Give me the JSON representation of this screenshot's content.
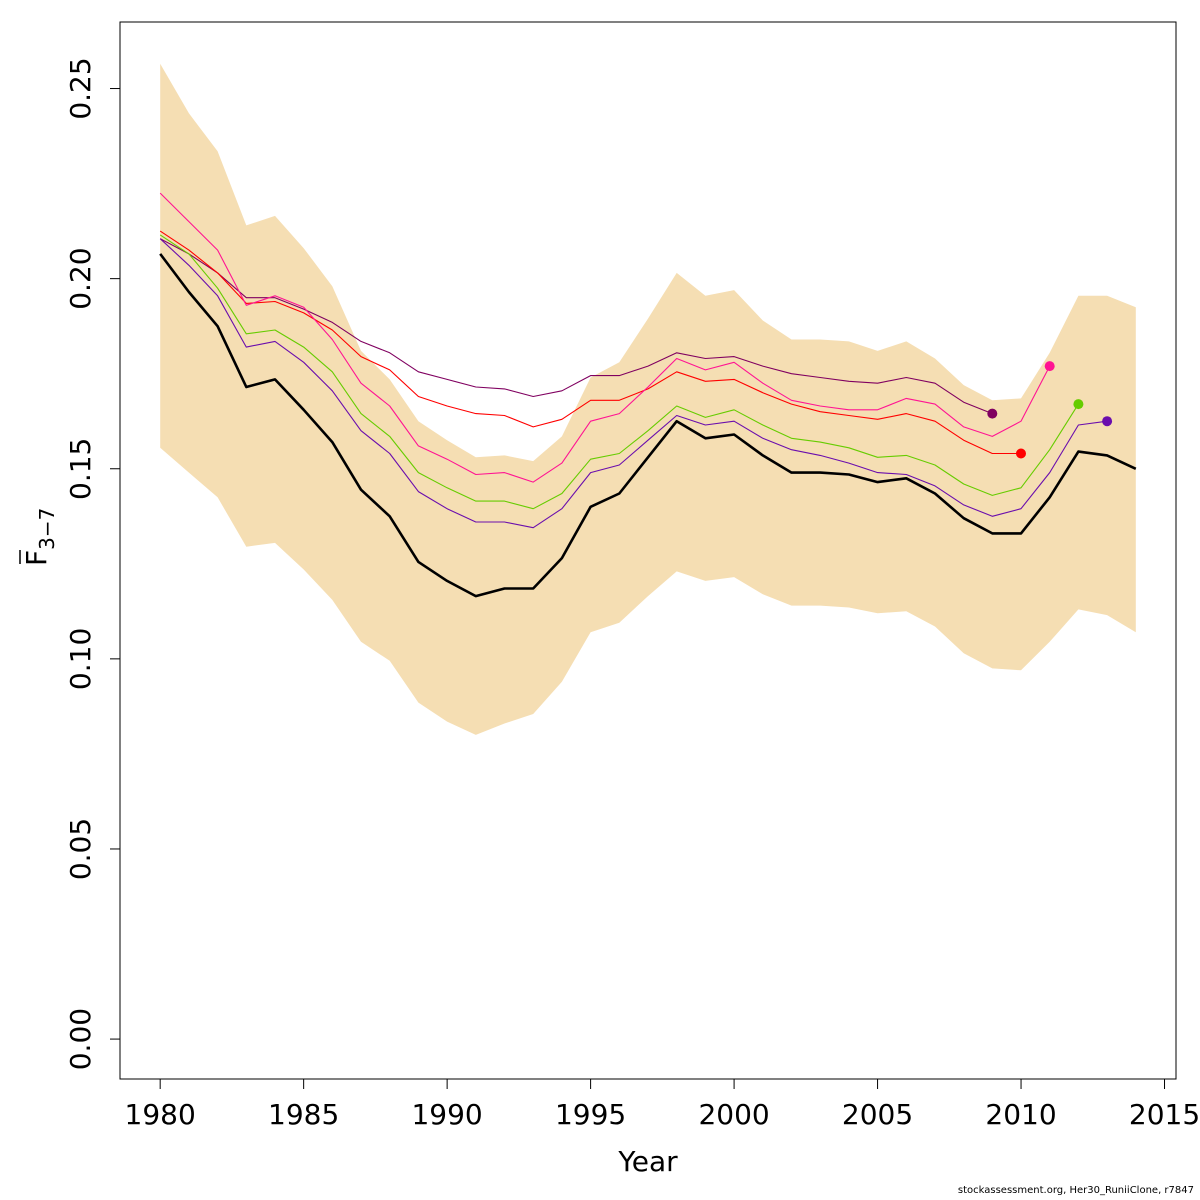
{
  "chart_data": {
    "type": "line",
    "title": "",
    "xlabel": "Year",
    "ylabel": "F",
    "ylabel_subscript": "3−7",
    "xlim": [
      1978.6,
      2015.4
    ],
    "ylim": [
      -0.0105,
      0.2675
    ],
    "x_ticks": [
      1980,
      1985,
      1990,
      1995,
      2000,
      2005,
      2010,
      2015
    ],
    "y_ticks": [
      0.0,
      0.05,
      0.1,
      0.15,
      0.2,
      0.25
    ],
    "x_tick_labels": [
      "1980",
      "1985",
      "1990",
      "1995",
      "2000",
      "2005",
      "2010",
      "2015"
    ],
    "y_tick_labels": [
      "0.00",
      "0.05",
      "0.10",
      "0.15",
      "0.20",
      "0.25"
    ],
    "grid": false,
    "legend": "none",
    "x": [
      1980,
      1981,
      1982,
      1983,
      1984,
      1985,
      1986,
      1987,
      1988,
      1989,
      1990,
      1991,
      1992,
      1993,
      1994,
      1995,
      1996,
      1997,
      1998,
      1999,
      2000,
      2001,
      2002,
      2003,
      2004,
      2005,
      2006,
      2007,
      2008,
      2009,
      2010,
      2011,
      2012,
      2013,
      2014
    ],
    "band": {
      "color": "#f5deb3",
      "upper": [
        0.2565,
        0.2435,
        0.2335,
        0.214,
        0.2165,
        0.208,
        0.198,
        0.181,
        0.1735,
        0.1625,
        0.1575,
        0.153,
        0.1535,
        0.152,
        0.1585,
        0.174,
        0.178,
        0.1895,
        0.2015,
        0.1955,
        0.197,
        0.189,
        0.184,
        0.184,
        0.1835,
        0.181,
        0.1835,
        0.179,
        0.172,
        0.168,
        0.1685,
        0.1805,
        0.1955,
        0.1955,
        0.1925
      ],
      "lower": [
        0.1555,
        0.149,
        0.1425,
        0.1295,
        0.1305,
        0.1235,
        0.1155,
        0.1045,
        0.0995,
        0.0885,
        0.0835,
        0.08,
        0.083,
        0.0855,
        0.094,
        0.107,
        0.1095,
        0.1165,
        0.123,
        0.1205,
        0.1215,
        0.117,
        0.114,
        0.114,
        0.1135,
        0.112,
        0.1125,
        0.1085,
        0.1015,
        0.0975,
        0.097,
        0.1045,
        0.113,
        0.1115,
        0.107
      ]
    },
    "series": [
      {
        "color": "#000000",
        "width": 2.6,
        "x": [
          1980,
          1981,
          1982,
          1983,
          1984,
          1985,
          1986,
          1987,
          1988,
          1989,
          1990,
          1991,
          1992,
          1993,
          1994,
          1995,
          1996,
          1997,
          1998,
          1999,
          2000,
          2001,
          2002,
          2003,
          2004,
          2005,
          2006,
          2007,
          2008,
          2009,
          2010,
          2011,
          2012,
          2013,
          2014
        ],
        "values": [
          0.2065,
          0.1965,
          0.1875,
          0.1715,
          0.1735,
          0.1655,
          0.157,
          0.1445,
          0.1375,
          0.1255,
          0.1205,
          0.1165,
          0.1185,
          0.1185,
          0.1265,
          0.14,
          0.1435,
          0.153,
          0.1625,
          0.158,
          0.159,
          0.1535,
          0.149,
          0.149,
          0.1485,
          0.1465,
          0.1475,
          0.1435,
          0.137,
          0.133,
          0.133,
          0.1425,
          0.1545,
          0.1535,
          0.15
        ]
      },
      {
        "color": "#800060",
        "width": 1.1,
        "end_point": true,
        "x": [
          1980,
          1981,
          1982,
          1983,
          1984,
          1985,
          1986,
          1987,
          1988,
          1989,
          1990,
          1991,
          1992,
          1993,
          1994,
          1995,
          1996,
          1997,
          1998,
          1999,
          2000,
          2001,
          2002,
          2003,
          2004,
          2005,
          2006,
          2007,
          2008,
          2009
        ],
        "values": [
          0.2105,
          0.2065,
          0.2015,
          0.195,
          0.195,
          0.192,
          0.1885,
          0.1835,
          0.1805,
          0.1755,
          0.1735,
          0.1715,
          0.171,
          0.169,
          0.1705,
          0.1745,
          0.1745,
          0.177,
          0.1805,
          0.179,
          0.1795,
          0.177,
          0.175,
          0.174,
          0.173,
          0.1725,
          0.174,
          0.1725,
          0.1675,
          0.1645
        ]
      },
      {
        "color": "#ff0000",
        "width": 1.1,
        "end_point": true,
        "x": [
          1980,
          1981,
          1982,
          1983,
          1984,
          1985,
          1986,
          1987,
          1988,
          1989,
          1990,
          1991,
          1992,
          1993,
          1994,
          1995,
          1996,
          1997,
          1998,
          1999,
          2000,
          2001,
          2002,
          2003,
          2004,
          2005,
          2006,
          2007,
          2008,
          2009,
          2010
        ],
        "values": [
          0.2125,
          0.2075,
          0.2015,
          0.1935,
          0.194,
          0.191,
          0.1865,
          0.1795,
          0.176,
          0.169,
          0.1665,
          0.1645,
          0.164,
          0.161,
          0.163,
          0.168,
          0.168,
          0.171,
          0.1755,
          0.173,
          0.1735,
          0.17,
          0.167,
          0.165,
          0.164,
          0.163,
          0.1645,
          0.1625,
          0.1575,
          0.154,
          0.154
        ]
      },
      {
        "color": "#ff1493",
        "width": 1.1,
        "end_point": true,
        "x": [
          1980,
          1981,
          1982,
          1983,
          1984,
          1985,
          1986,
          1987,
          1988,
          1989,
          1990,
          1991,
          1992,
          1993,
          1994,
          1995,
          1996,
          1997,
          1998,
          1999,
          2000,
          2001,
          2002,
          2003,
          2004,
          2005,
          2006,
          2007,
          2008,
          2009,
          2010,
          2011
        ],
        "values": [
          0.2225,
          0.215,
          0.2075,
          0.193,
          0.1955,
          0.1925,
          0.184,
          0.1725,
          0.1665,
          0.156,
          0.1525,
          0.1485,
          0.149,
          0.1465,
          0.1515,
          0.1625,
          0.1645,
          0.1715,
          0.179,
          0.176,
          0.178,
          0.1725,
          0.168,
          0.1665,
          0.1655,
          0.1655,
          0.1685,
          0.167,
          0.161,
          0.1585,
          0.1625,
          0.177
        ]
      },
      {
        "color": "#66cc00",
        "width": 1.1,
        "end_point": true,
        "x": [
          1980,
          1981,
          1982,
          1983,
          1984,
          1985,
          1986,
          1987,
          1988,
          1989,
          1990,
          1991,
          1992,
          1993,
          1994,
          1995,
          1996,
          1997,
          1998,
          1999,
          2000,
          2001,
          2002,
          2003,
          2004,
          2005,
          2006,
          2007,
          2008,
          2009,
          2010,
          2011,
          2012
        ],
        "values": [
          0.2115,
          0.2065,
          0.1975,
          0.1855,
          0.1865,
          0.182,
          0.1755,
          0.1645,
          0.1585,
          0.149,
          0.145,
          0.1415,
          0.1415,
          0.1395,
          0.1435,
          0.1525,
          0.154,
          0.16,
          0.1665,
          0.1635,
          0.1655,
          0.1615,
          0.158,
          0.157,
          0.1555,
          0.153,
          0.1535,
          0.151,
          0.146,
          0.143,
          0.145,
          0.155,
          0.167
        ]
      },
      {
        "color": "#6a0dad",
        "width": 1.1,
        "end_point": true,
        "x": [
          1980,
          1981,
          1982,
          1983,
          1984,
          1985,
          1986,
          1987,
          1988,
          1989,
          1990,
          1991,
          1992,
          1993,
          1994,
          1995,
          1996,
          1997,
          1998,
          1999,
          2000,
          2001,
          2002,
          2003,
          2004,
          2005,
          2006,
          2007,
          2008,
          2009,
          2010,
          2011,
          2012,
          2013
        ],
        "values": [
          0.2105,
          0.2035,
          0.1955,
          0.182,
          0.1835,
          0.178,
          0.1705,
          0.16,
          0.154,
          0.144,
          0.1395,
          0.136,
          0.136,
          0.1345,
          0.1395,
          0.149,
          0.151,
          0.1575,
          0.164,
          0.1615,
          0.1625,
          0.158,
          0.155,
          0.1535,
          0.1515,
          0.149,
          0.1485,
          0.1455,
          0.1405,
          0.1375,
          0.1395,
          0.149,
          0.1615,
          0.1625
        ]
      }
    ],
    "footnote": "stockassessment.org, Her30_RuniiClone, r7847"
  }
}
